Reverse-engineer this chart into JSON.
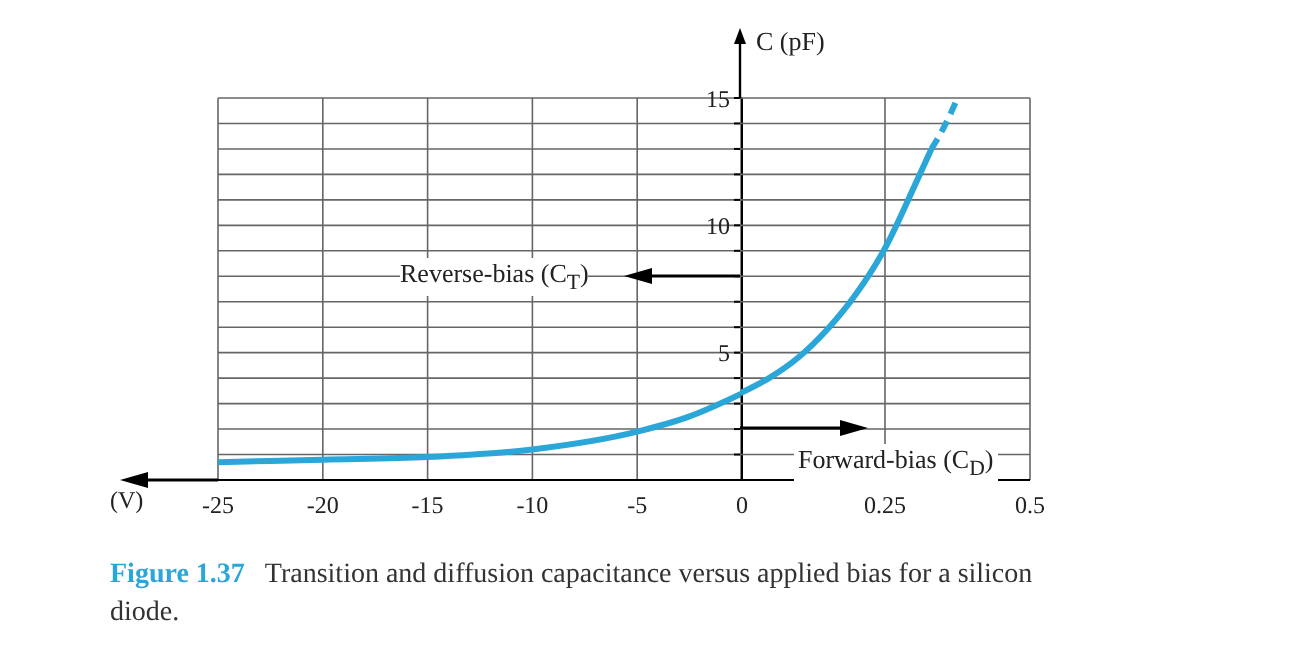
{
  "chart_data": [
    {
      "type": "line",
      "xlabel": "(V)",
      "ylabel": "C (pF)",
      "xlim": [
        -25,
        0
      ],
      "xticks": [
        -25,
        -20,
        -15,
        -10,
        -5,
        0
      ],
      "ylim": [
        0,
        15
      ],
      "yticks": [
        {
          "value": 0,
          "label": null
        },
        {
          "value": 1,
          "label": null
        },
        {
          "value": 2,
          "label": null
        },
        {
          "value": 3,
          "label": null
        },
        {
          "value": 4,
          "label": null
        },
        5,
        {
          "value": 6,
          "label": null
        },
        {
          "value": 7,
          "label": null
        },
        {
          "value": 8,
          "label": null
        },
        {
          "value": 9,
          "label": null
        },
        10,
        {
          "value": 11,
          "label": null
        },
        {
          "value": 12,
          "label": null
        },
        {
          "value": 13,
          "label": null
        },
        {
          "value": 14,
          "label": null
        },
        15
      ],
      "grid": true,
      "annotations": [
        "Reverse-bias (C$_{T}$)",
        "Figure 1.37",
        "Transition and diffusion capacitance versus applied bias for a silicon diode."
      ],
      "series": [
        {
          "color": "#2aa6d8",
          "line_style": "solid",
          "x": [
            -25,
            -20,
            -15,
            -10,
            -5,
            -2.5,
            0
          ],
          "values": [
            0.7,
            0.8,
            0.9,
            1.2,
            1.9,
            2.5,
            3.4
          ]
        }
      ]
    },
    {
      "type": "line",
      "xlim": [
        0,
        0.5
      ],
      "xticks": [
        0.25,
        0.5
      ],
      "ylim": [
        0,
        15
      ],
      "yticks": [
        0,
        1,
        2,
        3,
        4,
        5,
        6,
        7,
        8,
        9,
        10,
        11,
        12,
        13,
        14,
        15
      ],
      "grid": true,
      "tick_labels": "x",
      "annotations": [
        "Forward-bias (C$_{D}$)"
      ],
      "series": [
        {
          "color": "#2aa6d8",
          "line_style": "solid",
          "x": [
            0,
            0.05,
            0.1,
            0.15,
            0.2,
            0.25,
            0.3,
            0.33
          ],
          "values": [
            3.4,
            4,
            4.8,
            5.9,
            7.3,
            9.1,
            11.5,
            13
          ]
        },
        {
          "color": "#2aa6d8",
          "line_style": "dashed",
          "x": [
            0.33,
            0.355,
            0.375
          ],
          "values": [
            13,
            14,
            15
          ]
        }
      ]
    }
  ]
}
